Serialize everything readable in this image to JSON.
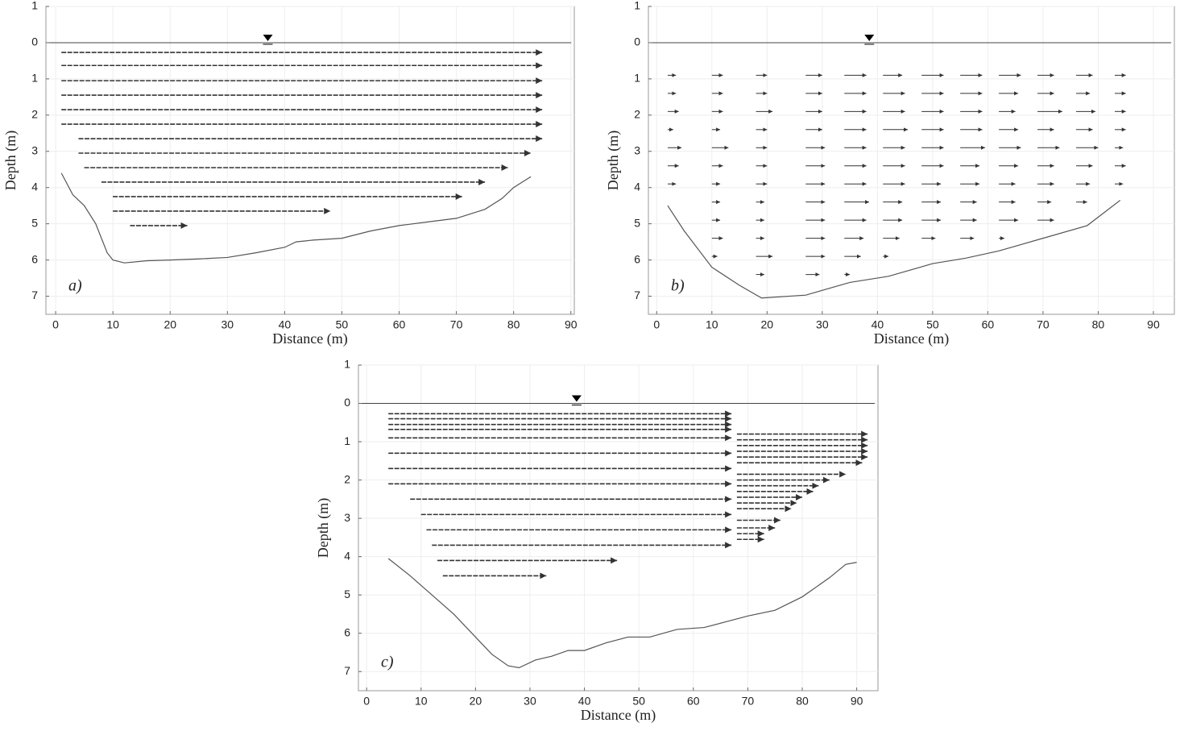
{
  "chart_data": [
    {
      "type": "vector",
      "panel_label": "a)",
      "xlabel": "Distance (m)",
      "ylabel": "Depth (m)",
      "xlim": [
        -1.7,
        90.6
      ],
      "ylim": [
        -1,
        7.5
      ],
      "grid": true,
      "color": "#333333",
      "xticks": [
        0,
        10,
        20,
        30,
        40,
        50,
        60,
        70,
        80,
        90
      ],
      "yticks": [
        {
          "value": -1,
          "label": "1"
        },
        0,
        1,
        2,
        3,
        4,
        5,
        6,
        7
      ],
      "bed": {
        "x": [
          1,
          3,
          5,
          7,
          9,
          10,
          12,
          16,
          20,
          25,
          30,
          35,
          40,
          42,
          45,
          50,
          55,
          60,
          65,
          70,
          75,
          78,
          80,
          83
        ],
        "y": [
          3.6,
          4.2,
          4.5,
          5.0,
          5.8,
          6.0,
          6.08,
          6.02,
          6.0,
          5.97,
          5.93,
          5.8,
          5.65,
          5.5,
          5.45,
          5.4,
          5.2,
          5.05,
          4.95,
          4.85,
          4.6,
          4.3,
          4.0,
          3.7
        ]
      },
      "segments": [
        {
          "depth": 0.27,
          "x_start": 1,
          "x_end": 85
        },
        {
          "depth": 0.63,
          "x_start": 1,
          "x_end": 85
        },
        {
          "depth": 1.05,
          "x_start": 1,
          "x_end": 85
        },
        {
          "depth": 1.45,
          "x_start": 1,
          "x_end": 85
        },
        {
          "depth": 1.85,
          "x_start": 1,
          "x_end": 85
        },
        {
          "depth": 2.25,
          "x_start": 1,
          "x_end": 85
        },
        {
          "depth": 2.65,
          "x_start": 4,
          "x_end": 85
        },
        {
          "depth": 3.05,
          "x_start": 4,
          "x_end": 83
        },
        {
          "depth": 3.45,
          "x_start": 5,
          "x_end": 79
        },
        {
          "depth": 3.85,
          "x_start": 8,
          "x_end": 75
        },
        {
          "depth": 4.25,
          "x_start": 10,
          "x_end": 71
        },
        {
          "depth": 4.65,
          "x_start": 10,
          "x_end": 48
        },
        {
          "depth": 5.05,
          "x_start": 13,
          "x_end": 23
        }
      ]
    },
    {
      "type": "vector",
      "panel_label": "b)",
      "xlabel": "Distance (m)",
      "ylabel": "Depth (m)",
      "xlim": [
        -1.5,
        93.8
      ],
      "ylim": [
        -1,
        7.5
      ],
      "grid": true,
      "color": "#333333",
      "xticks": [
        0,
        10,
        20,
        30,
        40,
        50,
        60,
        70,
        80,
        90
      ],
      "yticks": [
        {
          "value": -1,
          "label": "1"
        },
        0,
        1,
        2,
        3,
        4,
        5,
        6,
        7
      ],
      "bed": {
        "x": [
          2,
          5,
          10,
          15,
          19,
          27,
          35,
          42,
          50,
          56,
          62,
          70,
          78,
          84
        ],
        "y": [
          4.5,
          5.2,
          6.2,
          6.7,
          7.05,
          6.97,
          6.62,
          6.45,
          6.1,
          5.95,
          5.75,
          5.4,
          5.05,
          4.35
        ]
      },
      "rows": [
        {
          "depth": 0.9,
          "x": [
            2,
            10,
            18,
            27,
            34,
            41,
            48,
            55,
            62,
            69,
            76,
            83
          ],
          "u": [
            1.5,
            2,
            2,
            3,
            4,
            3.5,
            4,
            4,
            4,
            3,
            3,
            2
          ]
        },
        {
          "depth": 1.4,
          "x": [
            2,
            10,
            18,
            27,
            34,
            41,
            48,
            55,
            62,
            69,
            76,
            83
          ],
          "u": [
            1.5,
            2,
            2,
            3,
            4,
            4,
            4,
            4,
            3.5,
            3,
            2.5,
            2
          ]
        },
        {
          "depth": 1.9,
          "x": [
            2,
            10,
            18,
            27,
            34,
            41,
            48,
            55,
            62,
            69,
            76,
            83
          ],
          "u": [
            2,
            2,
            3,
            3,
            4,
            4,
            4,
            4,
            3,
            4.5,
            3.5,
            2
          ]
        },
        {
          "depth": 2.4,
          "x": [
            2,
            10,
            18,
            27,
            34,
            41,
            48,
            55,
            62,
            69,
            76,
            83
          ],
          "u": [
            1,
            1.5,
            2,
            3,
            4,
            4.5,
            4,
            4,
            3.5,
            3,
            3,
            2
          ]
        },
        {
          "depth": 2.9,
          "x": [
            2,
            10,
            18,
            27,
            34,
            41,
            48,
            55,
            62,
            69,
            76,
            83
          ],
          "u": [
            2.5,
            3,
            2,
            3.5,
            4,
            4,
            4,
            4.5,
            4,
            4,
            4,
            1.5
          ]
        },
        {
          "depth": 3.4,
          "x": [
            2,
            10,
            18,
            27,
            34,
            41,
            48,
            55,
            62,
            69,
            76,
            83
          ],
          "u": [
            2,
            2,
            2,
            3.5,
            4,
            4,
            4,
            3.5,
            3.5,
            3,
            3,
            2
          ]
        },
        {
          "depth": 3.9,
          "x": [
            2,
            10,
            18,
            27,
            34,
            41,
            48,
            55,
            62,
            69,
            76,
            83
          ],
          "u": [
            1.5,
            1.5,
            2,
            3.5,
            4,
            4,
            3.5,
            3.5,
            3,
            3,
            2.5,
            1.5
          ]
        },
        {
          "depth": 4.4,
          "x": [
            10,
            18,
            27,
            34,
            41,
            48,
            55,
            62,
            69,
            76
          ],
          "u": [
            1.5,
            1.5,
            3.5,
            4.5,
            3.5,
            3.5,
            3,
            3,
            2.5,
            2
          ]
        },
        {
          "depth": 4.9,
          "x": [
            10,
            18,
            27,
            34,
            41,
            48,
            55,
            62,
            69
          ],
          "u": [
            1.5,
            1.5,
            3.5,
            4,
            3.5,
            3.5,
            3,
            3.5,
            3
          ]
        },
        {
          "depth": 5.4,
          "x": [
            10,
            18,
            27,
            34,
            41,
            48,
            55,
            62
          ],
          "u": [
            2,
            1.5,
            3.5,
            3.5,
            3,
            2.5,
            2.5,
            1
          ]
        },
        {
          "depth": 5.9,
          "x": [
            10,
            18,
            27,
            34,
            41
          ],
          "u": [
            1,
            3,
            3.5,
            3,
            1
          ]
        },
        {
          "depth": 6.4,
          "x": [
            18,
            27,
            34
          ],
          "u": [
            1.5,
            2.5,
            1
          ]
        }
      ]
    },
    {
      "type": "vector",
      "panel_label": "c)",
      "xlabel": "Distance (m)",
      "ylabel": "Depth (m)",
      "xlim": [
        -1.5,
        93.9
      ],
      "ylim": [
        -1,
        7.5
      ],
      "grid": true,
      "color": "#333333",
      "xticks": [
        0,
        10,
        20,
        30,
        40,
        50,
        60,
        70,
        80,
        90
      ],
      "yticks": [
        {
          "value": -1,
          "label": "1"
        },
        0,
        1,
        2,
        3,
        4,
        5,
        6,
        7
      ],
      "bed": {
        "x": [
          4,
          8,
          12,
          16,
          20,
          23,
          26,
          28,
          31,
          34,
          37,
          40,
          44,
          48,
          52,
          57,
          62,
          66,
          70,
          75,
          80,
          85,
          88,
          90
        ],
        "y": [
          4.05,
          4.5,
          5.0,
          5.5,
          6.1,
          6.55,
          6.85,
          6.9,
          6.7,
          6.6,
          6.45,
          6.45,
          6.25,
          6.1,
          6.1,
          5.9,
          5.85,
          5.7,
          5.55,
          5.4,
          5.05,
          4.55,
          4.2,
          4.15
        ]
      },
      "segments": [
        {
          "depth": 0.27,
          "x_start": 4,
          "x_end": 67
        },
        {
          "depth": 0.4,
          "x_start": 4,
          "x_end": 67
        },
        {
          "depth": 0.55,
          "x_start": 4,
          "x_end": 67
        },
        {
          "depth": 0.68,
          "x_start": 4,
          "x_end": 67
        },
        {
          "depth": 0.9,
          "x_start": 4,
          "x_end": 67
        },
        {
          "depth": 1.3,
          "x_start": 4,
          "x_end": 67
        },
        {
          "depth": 1.7,
          "x_start": 4,
          "x_end": 67
        },
        {
          "depth": 2.1,
          "x_start": 4,
          "x_end": 67
        },
        {
          "depth": 2.5,
          "x_start": 8,
          "x_end": 67
        },
        {
          "depth": 2.9,
          "x_start": 10,
          "x_end": 67
        },
        {
          "depth": 3.3,
          "x_start": 11,
          "x_end": 67
        },
        {
          "depth": 3.7,
          "x_start": 12,
          "x_end": 67
        },
        {
          "depth": 4.1,
          "x_start": 13,
          "x_end": 46
        },
        {
          "depth": 4.5,
          "x_start": 14,
          "x_end": 33
        },
        {
          "depth": 0.8,
          "x_start": 68,
          "x_end": 92
        },
        {
          "depth": 0.95,
          "x_start": 68,
          "x_end": 92
        },
        {
          "depth": 1.1,
          "x_start": 68,
          "x_end": 92
        },
        {
          "depth": 1.25,
          "x_start": 68,
          "x_end": 92
        },
        {
          "depth": 1.4,
          "x_start": 68,
          "x_end": 92
        },
        {
          "depth": 1.55,
          "x_start": 68,
          "x_end": 91
        },
        {
          "depth": 1.85,
          "x_start": 68,
          "x_end": 88
        },
        {
          "depth": 2.0,
          "x_start": 68,
          "x_end": 85
        },
        {
          "depth": 2.15,
          "x_start": 68,
          "x_end": 83
        },
        {
          "depth": 2.3,
          "x_start": 68,
          "x_end": 82
        },
        {
          "depth": 2.45,
          "x_start": 68,
          "x_end": 80
        },
        {
          "depth": 2.6,
          "x_start": 68,
          "x_end": 79
        },
        {
          "depth": 2.75,
          "x_start": 68,
          "x_end": 78
        },
        {
          "depth": 3.05,
          "x_start": 68,
          "x_end": 76
        },
        {
          "depth": 3.25,
          "x_start": 68,
          "x_end": 75
        },
        {
          "depth": 3.4,
          "x_start": 68,
          "x_end": 73
        },
        {
          "depth": 3.55,
          "x_start": 68,
          "x_end": 73
        }
      ]
    }
  ]
}
